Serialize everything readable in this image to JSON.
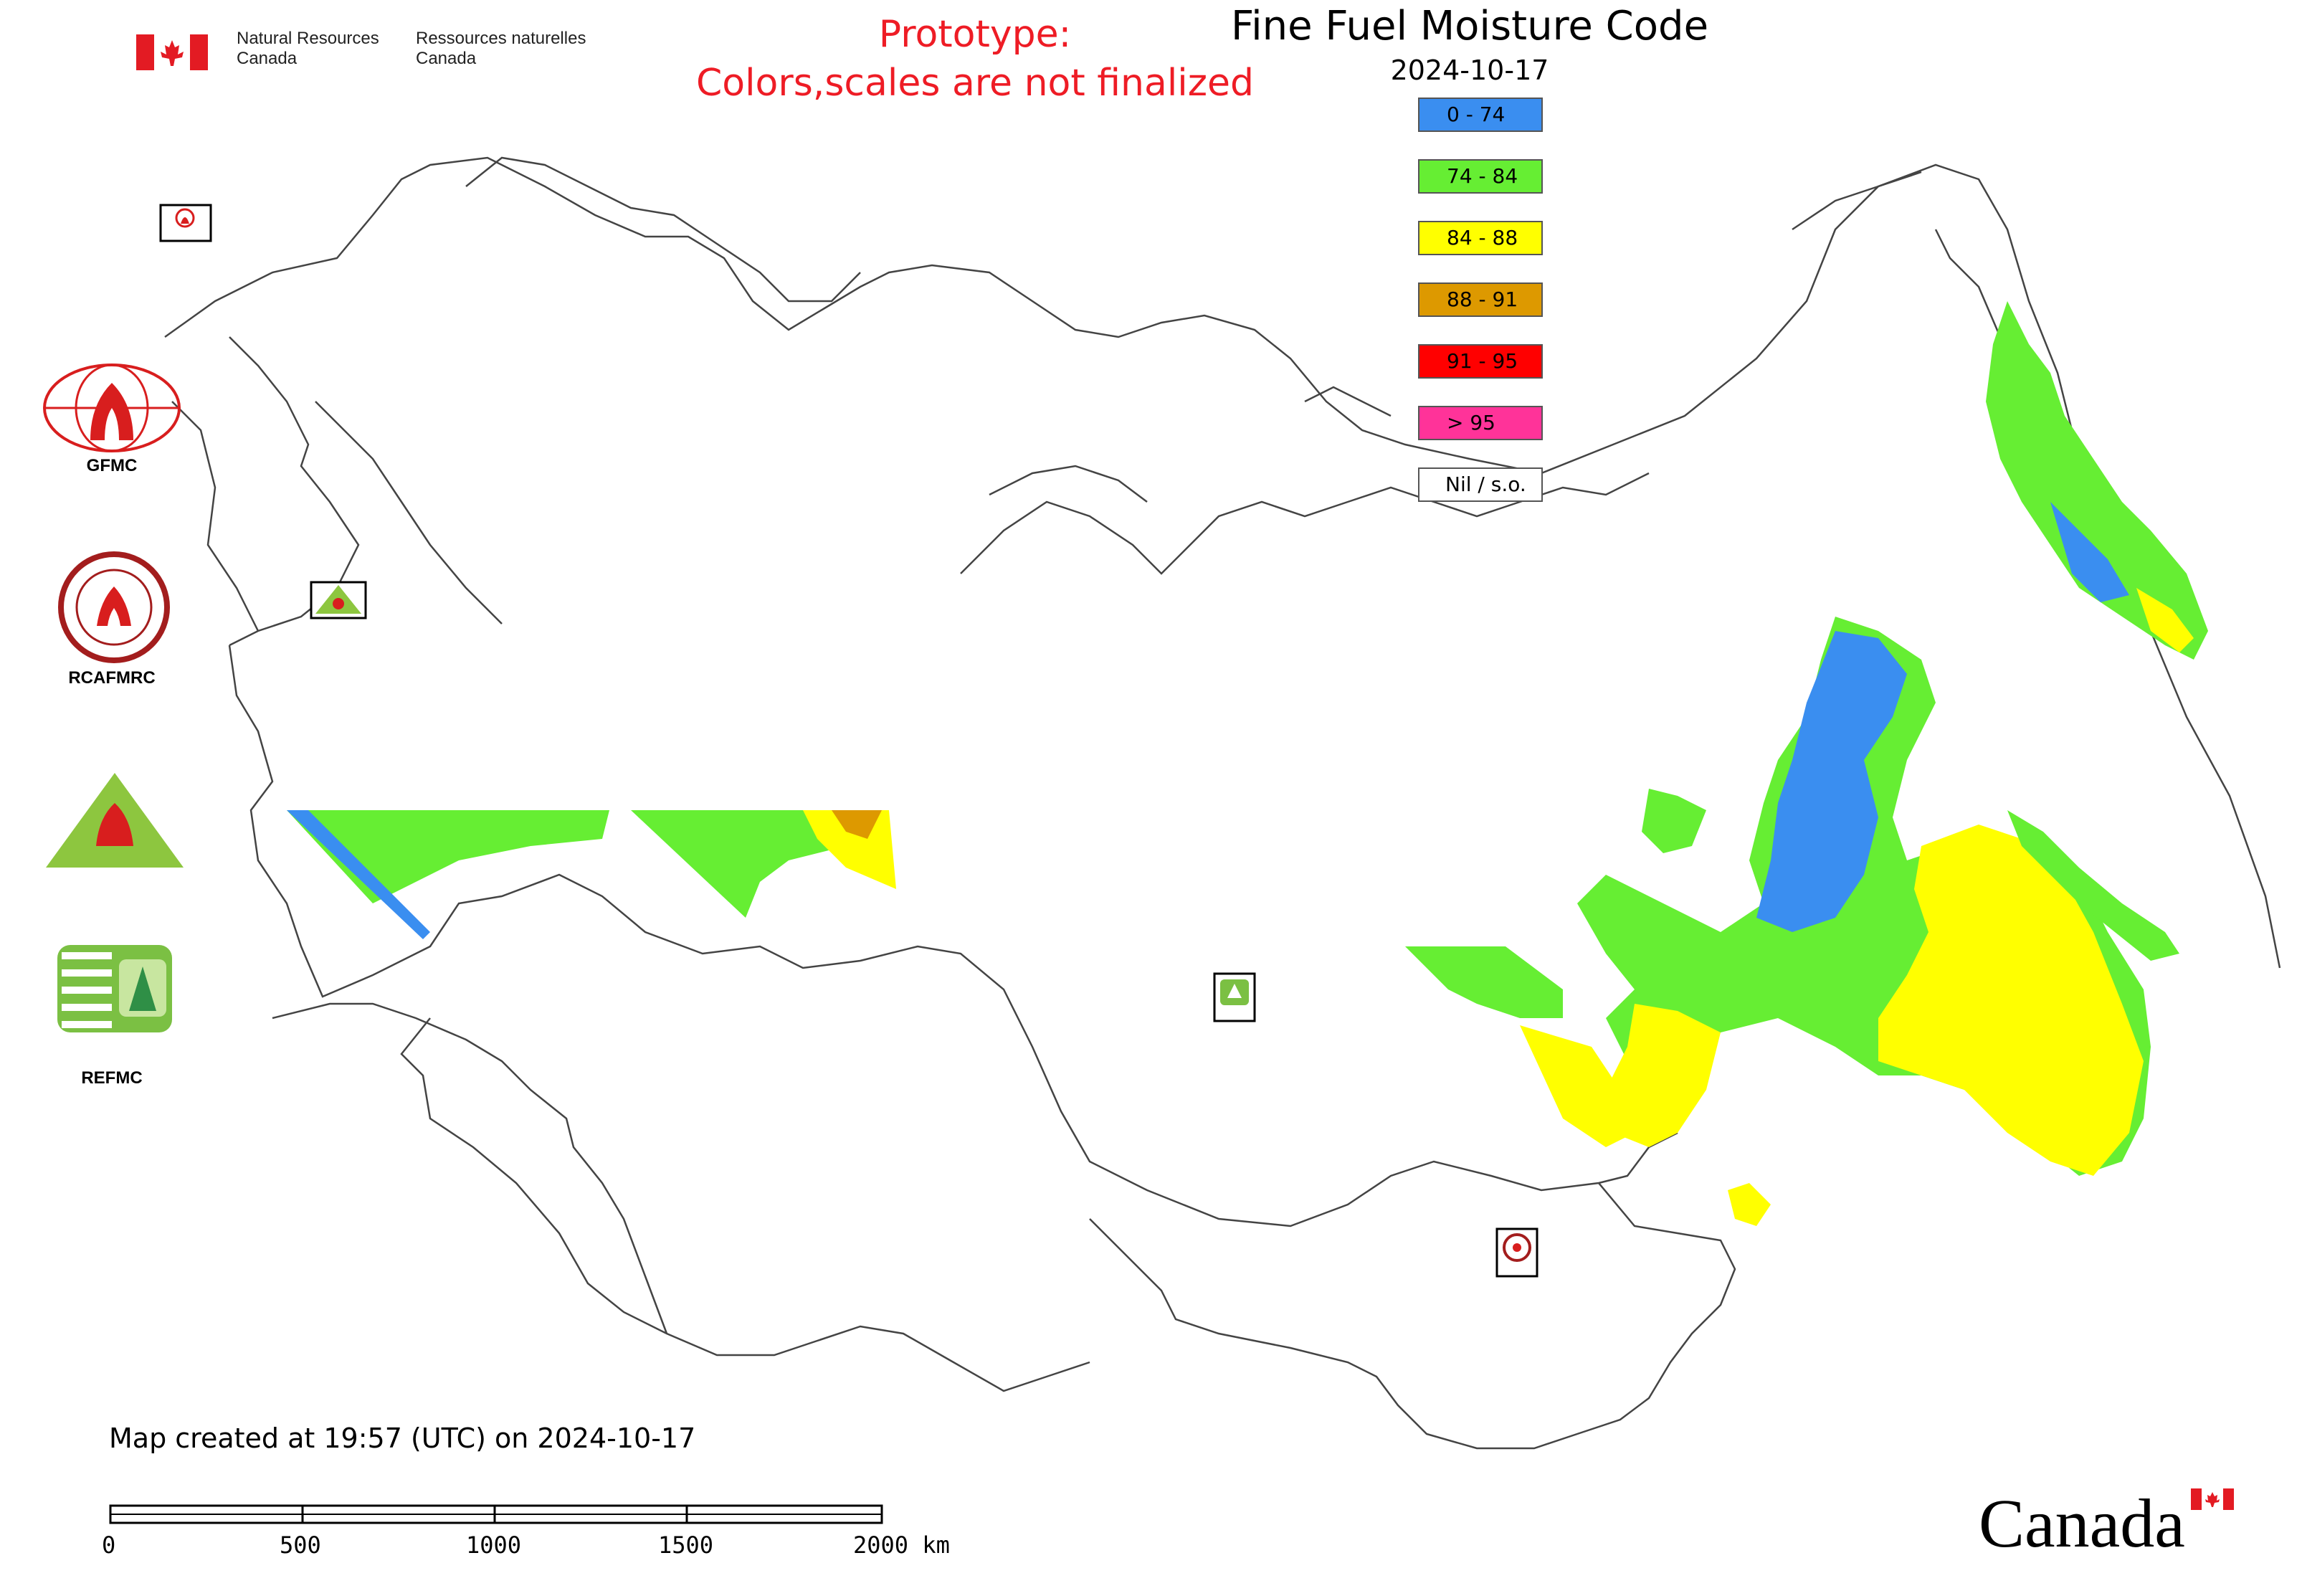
{
  "header": {
    "agency_en_line1": "Natural Resources",
    "agency_en_line2": "Canada",
    "agency_fr_line1": "Ressources naturelles",
    "agency_fr_line2": "Canada"
  },
  "prototype_note": {
    "line1": "Prototype:",
    "line2": "Colors,scales are not finalized",
    "color": "#ee1c25"
  },
  "map": {
    "title": "Fine Fuel Moisture Code",
    "date": "2024-10-17",
    "created_note": "Map created at 19:57 (UTC) on 2024-10-17"
  },
  "legend": [
    {
      "label": "0 - 74",
      "color": "#3a8ef0"
    },
    {
      "label": "74 - 84",
      "color": "#66ee33"
    },
    {
      "label": "84 - 88",
      "color": "#ffff00"
    },
    {
      "label": "88 - 91",
      "color": "#dd9900"
    },
    {
      "label": "91 - 95",
      "color": "#ff0000"
    },
    {
      "label": "> 95",
      "color": "#ff3399"
    },
    {
      "label": "Nil / s.o.",
      "color": "#ffffff"
    }
  ],
  "side_logos": [
    {
      "label": "GFMC",
      "icon": "gfmc-logo"
    },
    {
      "label": "RCAFMRC",
      "icon": "rcafmrc-logo"
    },
    {
      "label": "",
      "icon": "reefmc-logo"
    },
    {
      "label": "REFMC",
      "icon": "refmc-logo"
    }
  ],
  "map_markers": [
    {
      "label": "GFMC",
      "icon": "gfmc-marker-icon"
    },
    {
      "label": "REEFMC",
      "icon": "reefmc-marker-icon"
    },
    {
      "label": "REFMC",
      "icon": "refmc-marker-icon"
    },
    {
      "label": "RCAFMRC",
      "icon": "rcafmrc-marker-icon"
    }
  ],
  "scale_bar": {
    "ticks": [
      "0",
      "500",
      "1000",
      "1500",
      "2000 km"
    ]
  },
  "footer": {
    "wordmark": "Canada"
  }
}
